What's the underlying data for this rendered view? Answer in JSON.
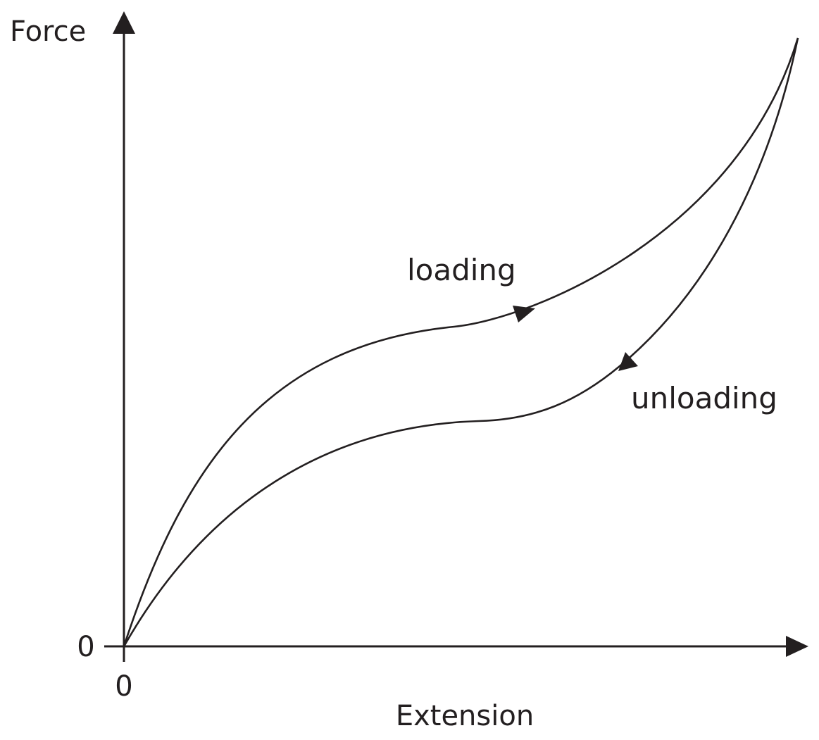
{
  "axes": {
    "y_label": "Force",
    "x_label": "Extension",
    "y_origin_tick": "0",
    "x_origin_tick": "0"
  },
  "curves": {
    "loading_label": "loading",
    "unloading_label": "unloading"
  },
  "colors": {
    "ink": "#231f20",
    "background": "#ffffff"
  }
}
